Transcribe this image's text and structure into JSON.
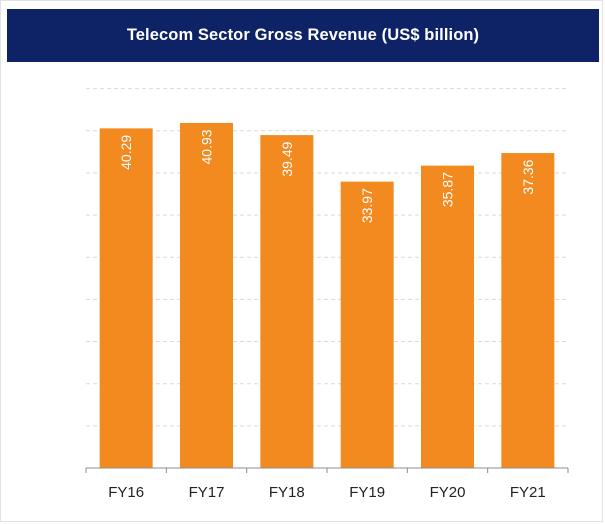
{
  "chart_data": {
    "type": "bar",
    "title": "Telecom Sector Gross Revenue (US$ billion)",
    "categories": [
      "FY16",
      "FY17",
      "FY18",
      "FY19",
      "FY20",
      "FY21"
    ],
    "values": [
      40.29,
      40.93,
      39.49,
      33.97,
      35.87,
      37.36
    ],
    "value_labels": [
      "40.29",
      "40.93",
      "39.49",
      "33.97",
      "35.87",
      "37.36"
    ],
    "xlabel": "",
    "ylabel": "",
    "ylim": [
      0,
      45
    ],
    "grid": true,
    "bar_color": "#f28a1f",
    "grid_color": "#d9d9d9",
    "header_color": "#0e2266"
  }
}
